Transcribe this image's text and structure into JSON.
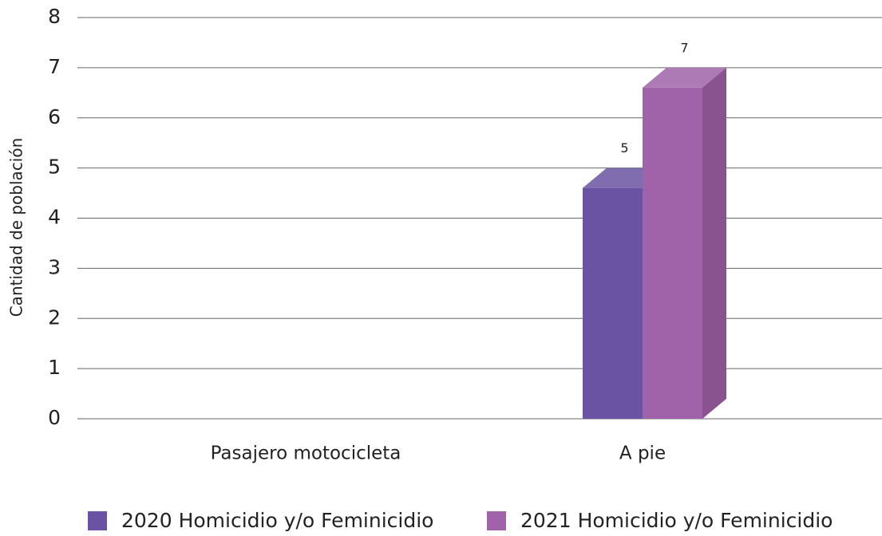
{
  "chart_data": {
    "type": "bar3d",
    "y_label": "Cantidad de población",
    "categories": [
      "Pasajero motocicleta",
      "A pie"
    ],
    "series": [
      {
        "name": "2020 Homicidio y/o Feminicidio",
        "color": "#6a53a2",
        "values": [
          null,
          5
        ]
      },
      {
        "name": "2021 Homicidio y/o Feminicidio",
        "color": "#a062a8",
        "values": [
          null,
          7
        ]
      }
    ],
    "ylim": [
      0,
      8
    ],
    "yticks": [
      0,
      1,
      2,
      3,
      4,
      5,
      6,
      7,
      8
    ],
    "grid": true,
    "legend": "bottom"
  }
}
